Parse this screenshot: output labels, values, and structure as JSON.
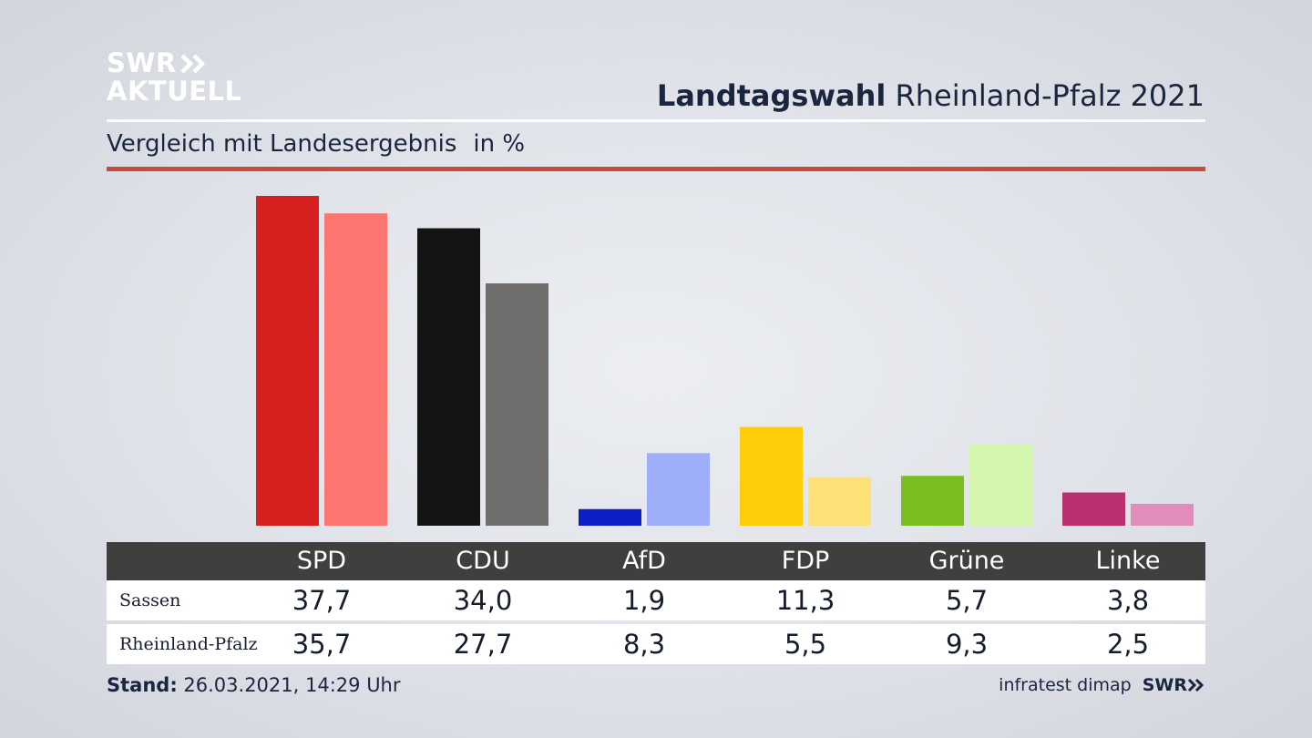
{
  "logo": {
    "line1": "SWR",
    "line2": "AKTUELL"
  },
  "header": {
    "title_bold": "Landtagswahl",
    "title_rest": "Rheinland-Pfalz 2021"
  },
  "subtitle": {
    "text": "Vergleich mit Landesergebnis",
    "unit": "in %"
  },
  "colors": {
    "accent_rule": "#cc4a3c",
    "table_header": "#403f3d"
  },
  "chart_data": {
    "type": "bar",
    "title": "Vergleich mit Landesergebnis",
    "ylabel": "in %",
    "categories": [
      "SPD",
      "CDU",
      "AfD",
      "FDP",
      "Grüne",
      "Linke"
    ],
    "ylim": [
      0,
      40
    ],
    "series": [
      {
        "name": "Sassen",
        "values": [
          37.7,
          34.0,
          1.9,
          11.3,
          5.7,
          3.8
        ],
        "display": [
          "37,7",
          "34,0",
          "1,9",
          "11,3",
          "5,7",
          "3,8"
        ],
        "colors": [
          "#d62020",
          "#141414",
          "#0a1fc8",
          "#fdcd0a",
          "#77be1e",
          "#b8306f"
        ]
      },
      {
        "name": "Rheinland-Pfalz",
        "values": [
          35.7,
          27.7,
          8.3,
          5.5,
          9.3,
          2.5
        ],
        "display": [
          "35,7",
          "27,7",
          "8,3",
          "5,5",
          "9,3",
          "2,5"
        ],
        "colors": [
          "#fe7570",
          "#6f6e6c",
          "#9eaefb",
          "#fee176",
          "#d4f5ae",
          "#e18cba"
        ]
      }
    ]
  },
  "footer": {
    "stand_label": "Stand:",
    "stand_value": "26.03.2021, 14:29 Uhr",
    "source": "infratest dimap",
    "brand": "SWR"
  }
}
